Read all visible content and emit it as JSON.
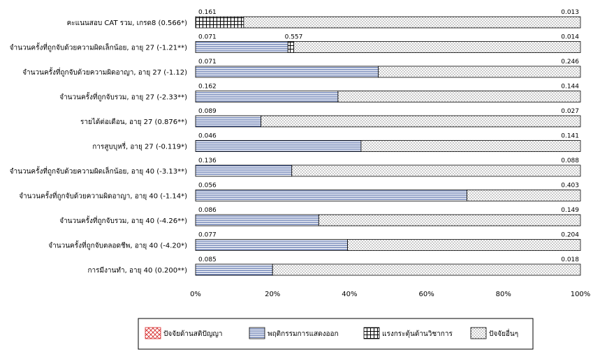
{
  "chart_data": {
    "type": "bar",
    "stacked_percent": true,
    "orientation": "horizontal",
    "categories": [
      "คะแนนสอบ CAT รวม, เกรด8 (0.566*)",
      "จำนวนครั้งที่ถูกจับด้วยความผิดเล็กน้อย, อายุ 27 (-1.21**)",
      "จำนวนครั้งที่ถูกจับด้วยความผิดอาญา, อายุ 27 (-1.12)",
      "จำนวนครั้งที่ถูกจับรวม, อายุ 27 (-2.33**)",
      "รายได้ต่อเดือน, อายุ 27 (0.876**)",
      "การสูบบุหรี่, อายุ 27 (-0.119*)",
      "จำนวนครั้งที่ถูกจับด้วยความผิดเล็กน้อย, อายุ 40 (-3.13**)",
      "จำนวนครั้งที่ถูกจับด้วยความผิดอาญา, อายุ 40 (-1.14*)",
      "จำนวนครั้งที่ถูกจับรวม, อายุ 40 (-4.26**)",
      "จำนวนครั้งที่ถูกจับตลอดชีพ, อายุ 40 (-4.20*)",
      "การมีงานทำ, อายุ 40 (0.200**)"
    ],
    "series": [
      {
        "name": "ปัจจัยด้านสติปัญญา",
        "pattern": "crosshatch",
        "color": "#d62728",
        "values": [
          0,
          0,
          0,
          0,
          0,
          0,
          0,
          0,
          0,
          0,
          0
        ]
      },
      {
        "name": "พฤติกรรมการแสดงออก",
        "pattern": "hlines",
        "color": "#1f3f8f",
        "values": [
          0,
          24,
          47.5,
          37,
          17,
          43,
          25,
          70.5,
          32,
          39.5,
          20
        ]
      },
      {
        "name": "แรงกระตุ้นด้านวิชาการ",
        "pattern": "grid",
        "color": "#000000",
        "values": [
          12.5,
          1.5,
          0,
          0,
          0,
          0,
          0,
          0,
          0,
          0,
          0
        ]
      },
      {
        "name": "ปัจจัยอื่นๆ",
        "pattern": "dots",
        "color": "#000000",
        "values": [
          87.5,
          74.5,
          52.5,
          63,
          83,
          57,
          75,
          29.5,
          68,
          60.5,
          80
        ]
      }
    ],
    "left_labels": [
      "0.161",
      "0.071",
      "0.071",
      "0.162",
      "0.089",
      "0.046",
      "0.136",
      "0.056",
      "0.086",
      "0.077",
      "0.085"
    ],
    "mid_labels": [
      "",
      "0.557",
      "",
      "",
      "",
      "",
      "",
      "",
      "",
      "",
      ""
    ],
    "right_labels": [
      "0.013",
      "0.014",
      "0.246",
      "0.144",
      "0.027",
      "0.141",
      "0.088",
      "0.403",
      "0.149",
      "0.204",
      "0.018"
    ],
    "x_ticks": [
      "0%",
      "20%",
      "40%",
      "60%",
      "80%",
      "100%"
    ],
    "xlim": [
      0,
      100
    ],
    "grid": false,
    "legend_position": "bottom"
  }
}
